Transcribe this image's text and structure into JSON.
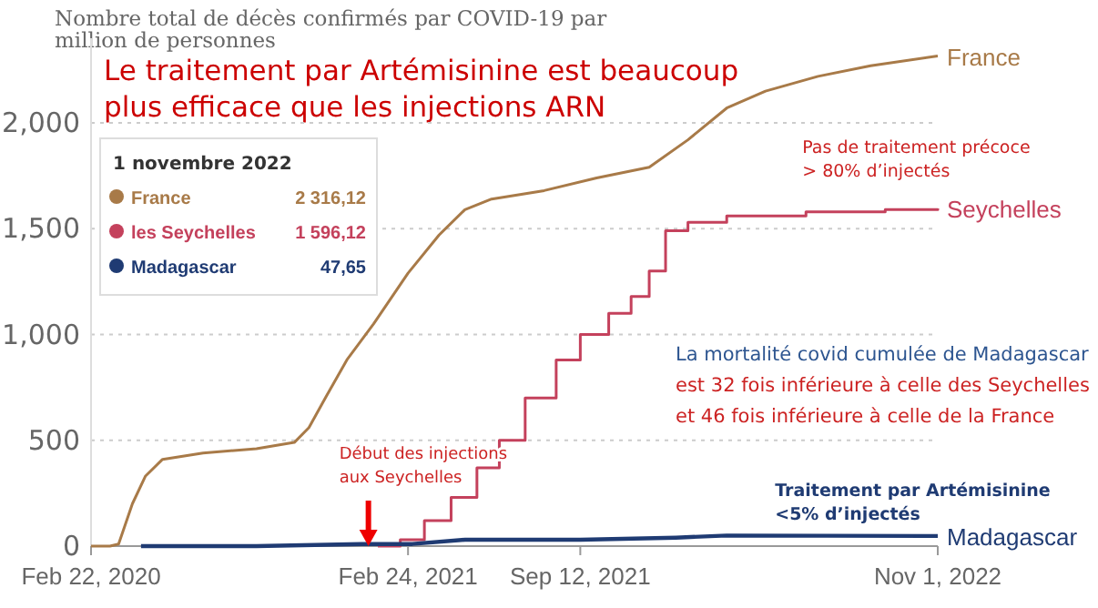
{
  "chart_data": {
    "type": "line",
    "title": "Nombre total de décès confirmés par COVID-19 par\nmillion de personnes",
    "subtitle": "Le traitement par Artémisinine est beaucoup\nplus efficace que les injections ARN",
    "xlim": [
      "2020-02-22",
      "2022-11-01"
    ],
    "ylim": [
      0,
      2400
    ],
    "xticks": [
      {
        "value": "2020-02-22",
        "label": "Feb 22, 2020"
      },
      {
        "value": "2021-02-24",
        "label": "Feb 24, 2021"
      },
      {
        "value": "2021-09-12",
        "label": "Sep 12, 2021"
      },
      {
        "value": "2022-11-01",
        "label": "Nov 1, 2022"
      }
    ],
    "yticks": [
      0,
      500,
      {
        "value": 1000,
        "label": "1,000"
      },
      {
        "value": 1500,
        "label": "1,500"
      },
      {
        "value": 2000,
        "label": "2,000"
      }
    ],
    "grid": "y",
    "legend": false,
    "marker": "none",
    "line_style": "solid",
    "series": [
      {
        "name": "France",
        "color": "#a87a48",
        "x": [
          "2020-02-22",
          "2020-03-15",
          "2020-03-25",
          "2020-04-10",
          "2020-04-25",
          "2020-05-15",
          "2020-07-01",
          "2020-09-01",
          "2020-10-15",
          "2020-11-01",
          "2020-11-20",
          "2020-12-15",
          "2021-01-15",
          "2021-02-24",
          "2021-04-01",
          "2021-05-01",
          "2021-06-01",
          "2021-08-01",
          "2021-10-01",
          "2021-12-01",
          "2022-01-15",
          "2022-03-01",
          "2022-04-15",
          "2022-06-15",
          "2022-08-15",
          "2022-11-01"
        ],
        "values": [
          0,
          0,
          10,
          200,
          330,
          410,
          440,
          460,
          490,
          560,
          700,
          880,
          1050,
          1290,
          1470,
          1590,
          1640,
          1680,
          1740,
          1790,
          1920,
          2070,
          2150,
          2220,
          2270,
          2316.12
        ]
      },
      {
        "name": "Seychelles",
        "color": "#c4415c",
        "type": "step",
        "x": [
          "2021-01-20",
          "2021-02-15",
          "2021-03-15",
          "2021-04-15",
          "2021-05-15",
          "2021-06-10",
          "2021-07-10",
          "2021-08-15",
          "2021-09-12",
          "2021-10-15",
          "2021-11-10",
          "2021-12-01",
          "2021-12-20",
          "2022-01-15",
          "2022-03-01",
          "2022-06-01",
          "2022-09-01",
          "2022-11-01"
        ],
        "values": [
          0,
          30,
          120,
          230,
          370,
          500,
          700,
          880,
          1000,
          1100,
          1180,
          1300,
          1490,
          1530,
          1560,
          1580,
          1590,
          1596.12
        ]
      },
      {
        "name": "Madagascar",
        "color": "#1f3b73",
        "x": [
          "2020-04-20",
          "2020-09-01",
          "2021-01-01",
          "2021-03-01",
          "2021-05-01",
          "2021-09-12",
          "2022-01-01",
          "2022-03-01",
          "2022-11-01"
        ],
        "values": [
          0,
          0,
          10,
          10,
          30,
          30,
          40,
          50,
          47.65
        ]
      }
    ],
    "annotations": [
      "1 novembre 2022",
      "France",
      "2 316,12",
      "les Seychelles",
      "1 596,12",
      "Madagascar",
      "47,65",
      {
        "text": "Pas de traitement précoce\n> 80% d’injectés",
        "x": "2022-06-01",
        "y": 1575
      },
      {
        "text": "Début des injections\naux Seychelles",
        "x": "2021-01-09",
        "y": 0
      },
      "La mortalité covid cumulée de Madagascar",
      "est 32 fois inférieure à celle des Seychelles\net 46 fois inférieure à celle de la France",
      {
        "text": "Traitement par Artémisinine\n<5% d’injectés",
        "x": "2022-06-01",
        "y": 47
      }
    ]
  }
}
